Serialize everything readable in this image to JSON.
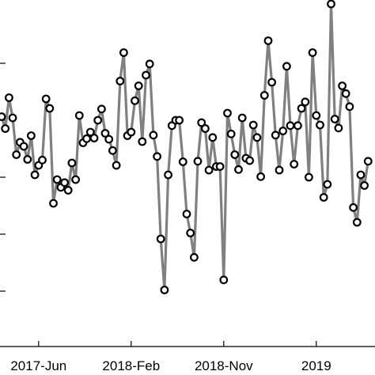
{
  "chart_data": {
    "type": "line",
    "title": "",
    "xlabel": "",
    "ylabel": "",
    "x_tick_labels": [
      "2017-Jun",
      "2018-Feb",
      "2018-Nov",
      "2019"
    ],
    "x_tick_index": [
      10,
      35,
      60,
      85
    ],
    "grid": false,
    "legend": "none",
    "series": [
      {
        "line_color": "#808080",
        "marker_edge_color": "#000000",
        "marker_face_color": "#ffffff",
        "marker": "circle",
        "values": [
          0.3,
          0.1,
          0.62,
          0.28,
          -0.34,
          -0.13,
          -0.2,
          -0.42,
          -0.02,
          -0.68,
          -0.52,
          -0.43,
          0.6,
          0.44,
          -1.16,
          -0.76,
          -0.89,
          -0.81,
          -0.94,
          -0.48,
          -0.76,
          0.32,
          -0.14,
          -0.07,
          0.04,
          -0.06,
          0.24,
          0.43,
          0.02,
          -0.08,
          -0.27,
          -0.52,
          0.9,
          1.38,
          -0.02,
          0.04,
          0.57,
          0.82,
          -0.12,
          1.0,
          1.19,
          -0.01,
          -0.37,
          -1.76,
          -2.62,
          -0.68,
          0.15,
          0.24,
          0.24,
          -0.46,
          -1.34,
          -1.66,
          -2.07,
          -0.45,
          0.2,
          0.1,
          -0.6,
          -0.05,
          -0.54,
          -0.54,
          -2.45,
          0.36,
          0.01,
          -0.34,
          -0.59,
          0.28,
          -0.4,
          -0.44,
          0.16,
          -0.05,
          -0.71,
          0.66,
          1.58,
          0.88,
          -0.01,
          -0.6,
          0.06,
          1.15,
          0.15,
          -0.5,
          0.15,
          0.44,
          0.55,
          -0.72,
          1.38,
          0.32,
          0.16,
          -1.06,
          -0.84,
          2.2,
          0.26,
          0.11,
          0.82,
          0.69,
          0.47,
          -1.23,
          -1.48,
          -0.68,
          -0.86,
          -0.45
        ]
      }
    ]
  }
}
